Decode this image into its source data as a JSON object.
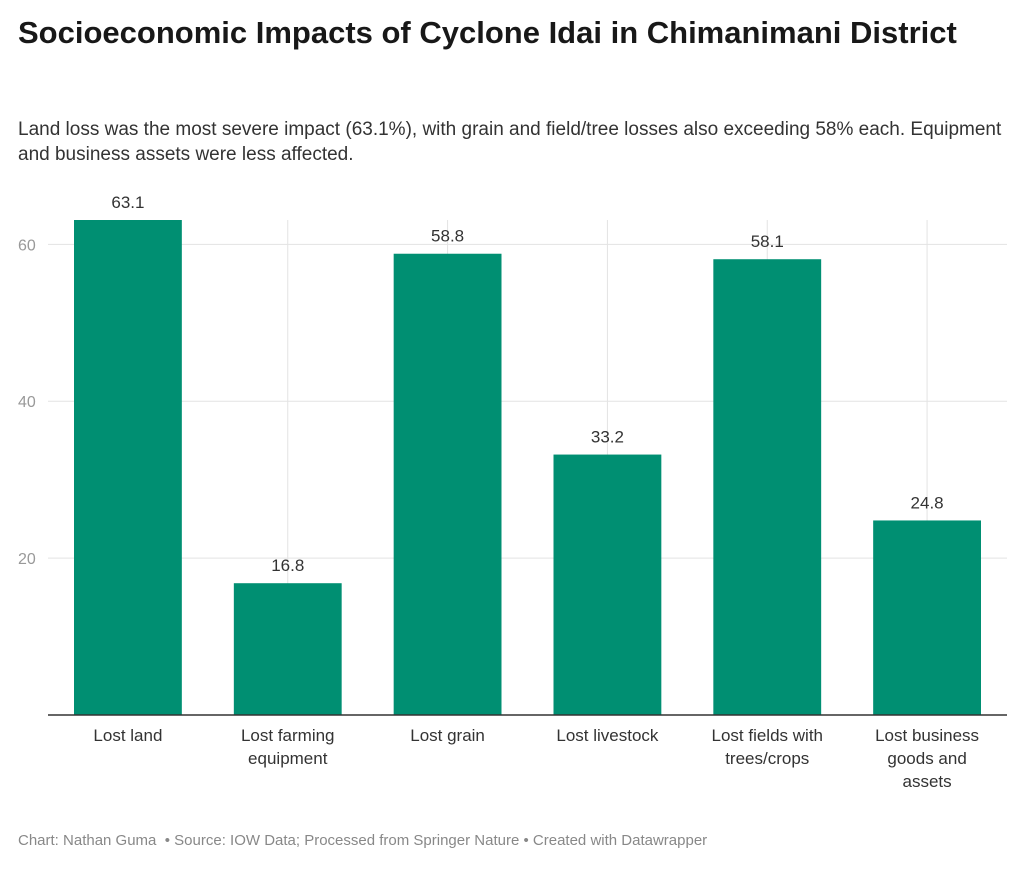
{
  "title": "Socioeconomic Impacts of Cyclone Idai in Chimanimani District",
  "subtitle": "Land loss was the most severe impact (63.1%), with grain and field/tree losses also exceeding 58% each. Equipment and business assets were less affected.",
  "footer": {
    "chart": "Chart: Nathan Guma",
    "source": "Source: IOW Data; Processed from Springer Nature",
    "created": "Created with Datawrapper"
  },
  "chart_data": {
    "type": "bar",
    "categories": [
      [
        "Lost land"
      ],
      [
        "Lost farming",
        "equipment"
      ],
      [
        "Lost grain"
      ],
      [
        "Lost livestock"
      ],
      [
        "Lost fields with",
        "trees/crops"
      ],
      [
        "Lost business",
        "goods and",
        "assets"
      ]
    ],
    "values": [
      63.1,
      16.8,
      58.8,
      33.2,
      58.1,
      24.8
    ],
    "value_labels": [
      "63.1",
      "16.8",
      "58.8",
      "33.2",
      "58.1",
      "24.8"
    ],
    "yticks": [
      "20",
      "40",
      "60"
    ],
    "ylim": [
      0,
      63.1
    ],
    "grid": true,
    "bar_color": "#008f72",
    "xlabel": "",
    "ylabel": ""
  }
}
